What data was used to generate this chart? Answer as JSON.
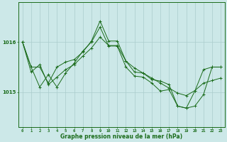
{
  "background_color": "#cce8e8",
  "grid_color": "#aacccc",
  "line_color": "#1a6b1a",
  "title": "Graphe pression niveau de la mer (hPa)",
  "x_ticks": [
    0,
    1,
    2,
    3,
    4,
    5,
    6,
    7,
    8,
    9,
    10,
    11,
    12,
    13,
    14,
    15,
    16,
    17,
    18,
    19,
    20,
    21,
    22,
    23
  ],
  "y_ticks": [
    1015,
    1016
  ],
  "xlim": [
    -0.5,
    23.5
  ],
  "ylim": [
    1014.3,
    1016.8
  ],
  "series1": {
    "x": [
      0,
      1,
      2,
      3,
      4,
      5,
      6,
      7,
      8,
      9,
      10,
      11,
      12,
      13,
      14,
      15,
      16,
      17,
      18,
      19,
      20,
      21,
      22,
      23
    ],
    "y": [
      1016.0,
      1015.4,
      1015.55,
      1015.15,
      1015.3,
      1015.45,
      1015.55,
      1015.72,
      1015.88,
      1016.1,
      1015.93,
      1015.93,
      1015.62,
      1015.48,
      1015.38,
      1015.28,
      1015.18,
      1015.08,
      1014.98,
      1014.93,
      1015.03,
      1015.18,
      1015.23,
      1015.28
    ]
  },
  "series2": {
    "x": [
      0,
      1,
      2,
      3,
      4,
      5,
      6,
      7,
      8,
      9,
      10,
      11,
      12,
      13,
      14,
      15,
      16,
      17,
      18,
      19,
      20,
      21,
      22,
      23
    ],
    "y": [
      1016.0,
      1015.5,
      1015.1,
      1015.35,
      1015.1,
      1015.38,
      1015.58,
      1015.82,
      1016.0,
      1016.3,
      1015.92,
      1015.92,
      1015.5,
      1015.32,
      1015.3,
      1015.18,
      1015.02,
      1015.05,
      1014.72,
      1014.68,
      1015.02,
      1015.45,
      1015.5,
      1015.5
    ]
  },
  "series3": {
    "x": [
      0,
      1,
      2,
      3,
      4,
      5,
      6,
      7,
      8,
      9,
      10,
      11,
      12,
      13,
      14,
      15,
      16,
      17,
      18,
      19,
      20,
      21,
      22,
      23
    ],
    "y": [
      1016.0,
      1015.5,
      1015.5,
      1015.18,
      1015.5,
      1015.6,
      1015.65,
      1015.8,
      1016.02,
      1016.42,
      1016.02,
      1016.02,
      1015.62,
      1015.4,
      1015.38,
      1015.25,
      1015.22,
      1015.15,
      1014.72,
      1014.68,
      1014.72,
      1014.95,
      1015.5,
      1015.5
    ]
  }
}
